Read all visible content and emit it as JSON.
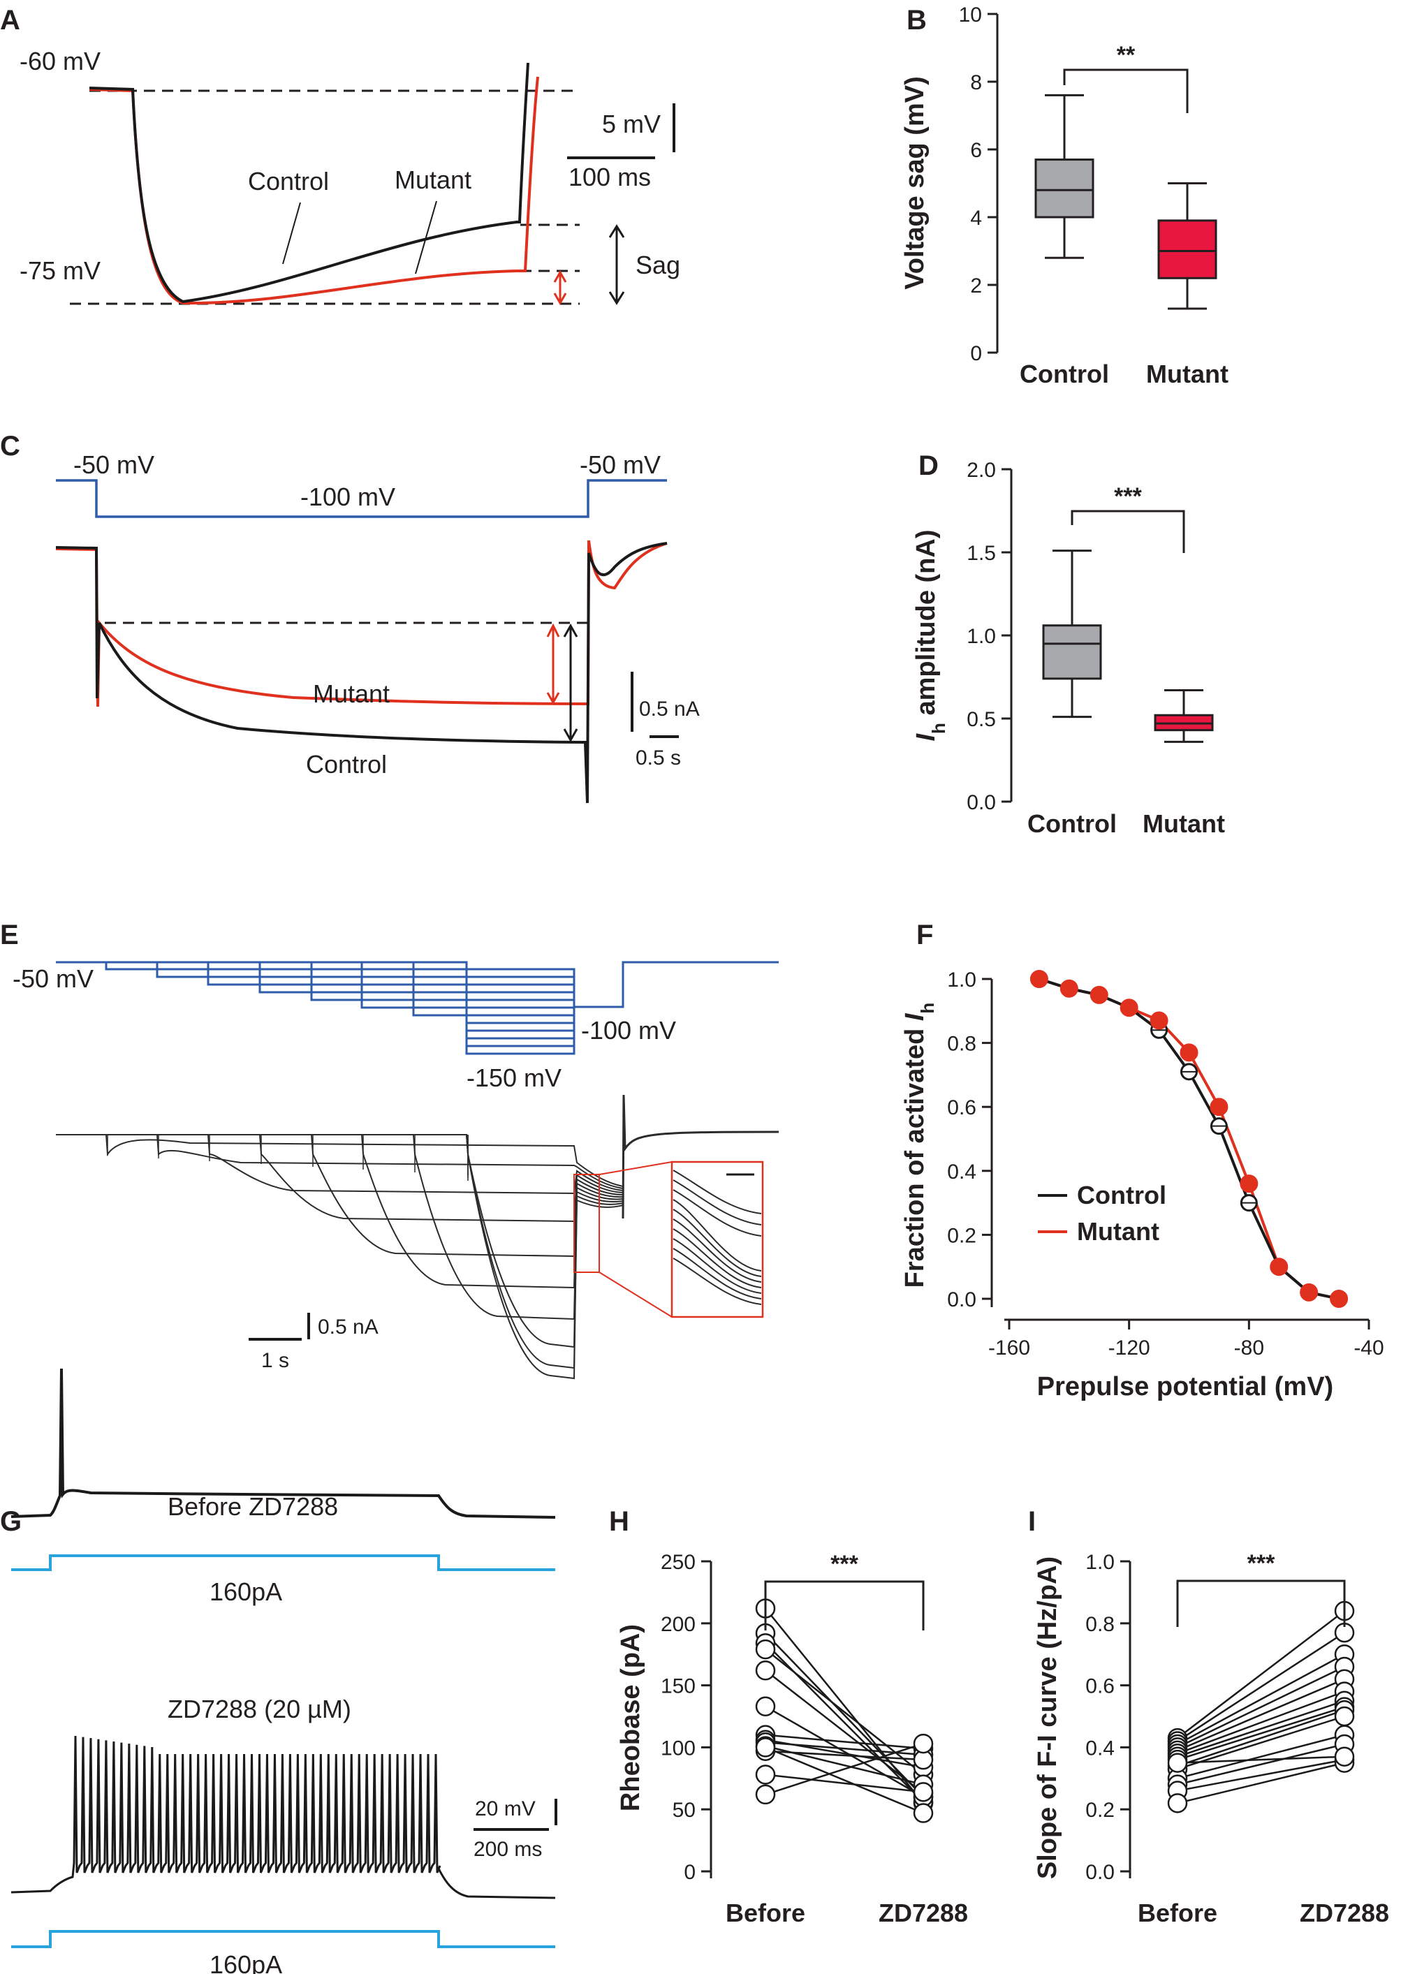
{
  "colors": {
    "control": "#1a1a1a",
    "mutant": "#e0301e",
    "protocol": "#2e5caa",
    "current": "#29a3dd",
    "control_box": "#a7a9ac",
    "mutant_box": "#e8173f"
  },
  "panel_labels": [
    "A",
    "B",
    "C",
    "D",
    "E",
    "F",
    "G",
    "H",
    "I"
  ],
  "panel_a": {
    "v_top": "-60 mV",
    "v_bottom": "-75 mV",
    "control_label": "Control",
    "mutant_label": "Mutant",
    "sag_label": "Sag",
    "scale_v": "5 mV",
    "scale_t": "100 ms"
  },
  "panel_c": {
    "v_hold_left": "-50 mV",
    "v_step": "-100 mV",
    "v_hold_right": "-50 mV",
    "mutant_label": "Mutant",
    "control_label": "Control",
    "scale_i": "0.5 nA",
    "scale_t": "0.5 s"
  },
  "panel_e": {
    "v_hold": "-50 mV",
    "v_test": "-100 mV",
    "v_min": "-150 mV",
    "scale_i": "0.5 nA",
    "scale_t": "1 s"
  },
  "panel_g": {
    "before_title": "Before ZD7288",
    "after_title": "ZD7288 (20 µM)",
    "step_label": "160pA",
    "scale_v": "20 mV",
    "scale_t": "200 ms"
  },
  "chart_data": [
    {
      "panel": "B",
      "type": "box",
      "ylabel": "Voltage sag (mV)",
      "ylim": [
        0,
        10
      ],
      "yticks": [
        "0",
        "2",
        "4",
        "6",
        "8",
        "10"
      ],
      "categories": [
        "Control",
        "Mutant"
      ],
      "boxes": [
        {
          "name": "Control",
          "min": 2.8,
          "q1": 4.0,
          "median": 4.8,
          "q3": 5.7,
          "max": 7.6
        },
        {
          "name": "Mutant",
          "min": 1.3,
          "q1": 2.2,
          "median": 3.0,
          "q3": 3.9,
          "max": 5.0
        }
      ],
      "significance": "**"
    },
    {
      "panel": "D",
      "type": "box",
      "ylabel_italic": "I",
      "ylabel_sub": "h",
      "ylabel": " amplitude (nA)",
      "ylim": [
        0,
        2
      ],
      "yticks": [
        "0.0",
        "0.5",
        "1.0",
        "1.5",
        "2.0"
      ],
      "categories": [
        "Control",
        "Mutant"
      ],
      "boxes": [
        {
          "name": "Control",
          "min": 0.51,
          "q1": 0.74,
          "median": 0.95,
          "q3": 1.06,
          "max": 1.51
        },
        {
          "name": "Mutant",
          "min": 0.36,
          "q1": 0.43,
          "median": 0.47,
          "q3": 0.52,
          "max": 0.67
        }
      ],
      "significance": "***"
    },
    {
      "panel": "F",
      "type": "line",
      "xlabel": "Prepulse potential (mV)",
      "ylabel": "Fraction of activated ",
      "ylabel_italic": "I",
      "ylabel_sub": "h",
      "xlim": [
        -160,
        -40
      ],
      "ylim": [
        0,
        1
      ],
      "xticks": [
        "-160",
        "-120",
        "-80",
        "-40"
      ],
      "yticks": [
        "0.0",
        "0.2",
        "0.4",
        "0.6",
        "0.8",
        "1.0"
      ],
      "x": [
        -150,
        -140,
        -130,
        -120,
        -110,
        -100,
        -90,
        -80,
        -70,
        -60,
        -50
      ],
      "series": [
        {
          "name": "Control",
          "values": [
            1.0,
            0.97,
            0.95,
            0.91,
            0.84,
            0.71,
            0.54,
            0.3,
            0.1,
            0.02,
            0.0
          ]
        },
        {
          "name": "Mutant",
          "values": [
            1.0,
            0.97,
            0.95,
            0.91,
            0.87,
            0.77,
            0.6,
            0.36,
            0.1,
            0.02,
            0.0
          ]
        }
      ]
    },
    {
      "panel": "H",
      "type": "scatter",
      "ylabel": "Rheobase (pA)",
      "ylim": [
        0,
        250
      ],
      "yticks": [
        "0",
        "50",
        "100",
        "150",
        "200",
        "250"
      ],
      "categories": [
        "Before",
        "ZD7288"
      ],
      "pairs": [
        [
          212,
          55
        ],
        [
          192,
          60
        ],
        [
          184,
          56
        ],
        [
          179,
          78
        ],
        [
          162,
          63
        ],
        [
          133,
          60
        ],
        [
          110,
          99
        ],
        [
          106,
          84
        ],
        [
          104,
          94
        ],
        [
          101,
          70
        ],
        [
          97,
          90
        ],
        [
          78,
          64
        ],
        [
          62,
          103
        ],
        [
          100,
          47
        ]
      ],
      "significance": "***"
    },
    {
      "panel": "I",
      "type": "scatter",
      "ylabel": "Slope of F-I curve (Hz/pA)",
      "ylim": [
        0,
        1
      ],
      "yticks": [
        "0.0",
        "0.2",
        "0.4",
        "0.6",
        "0.8",
        "1.0"
      ],
      "categories": [
        "Before",
        "ZD7288"
      ],
      "pairs": [
        [
          0.43,
          0.84
        ],
        [
          0.42,
          0.77
        ],
        [
          0.41,
          0.7
        ],
        [
          0.4,
          0.66
        ],
        [
          0.39,
          0.62
        ],
        [
          0.38,
          0.58
        ],
        [
          0.37,
          0.55
        ],
        [
          0.36,
          0.53
        ],
        [
          0.34,
          0.52
        ],
        [
          0.33,
          0.5
        ],
        [
          0.3,
          0.44
        ],
        [
          0.28,
          0.41
        ],
        [
          0.26,
          0.36
        ],
        [
          0.22,
          0.35
        ],
        [
          0.35,
          0.37
        ]
      ],
      "significance": "***"
    }
  ]
}
